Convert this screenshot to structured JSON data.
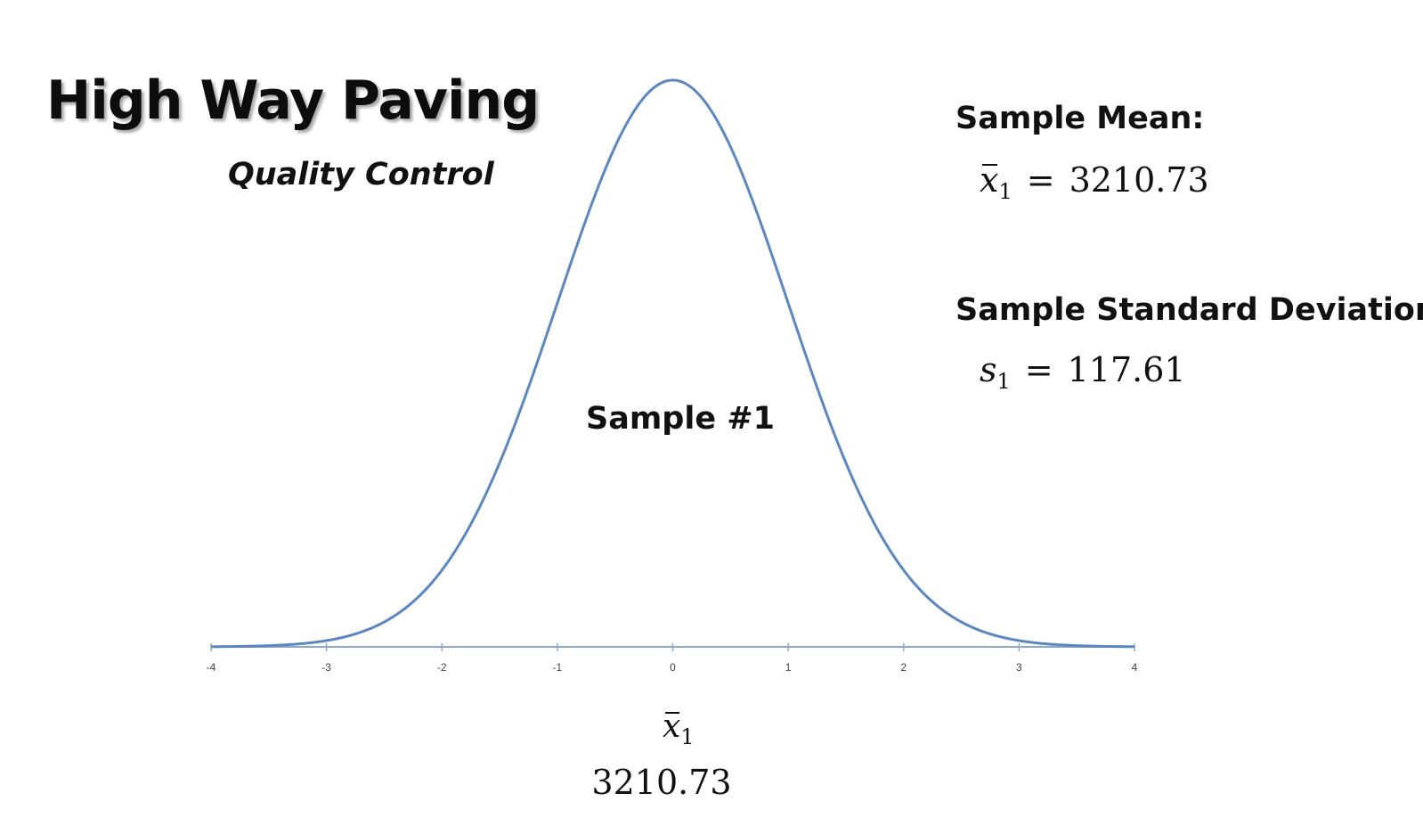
{
  "title": "High Way Paving",
  "subtitle": "Quality Control",
  "mean": {
    "label": "Sample Mean:",
    "symbol": "x",
    "subscript": "1",
    "equals": "=",
    "value": "3210.73"
  },
  "std_dev": {
    "label": "Sample Standard Deviation:",
    "symbol": "s",
    "subscript": "1",
    "equals": "=",
    "value": "117.61"
  },
  "sample_name": "Sample #1",
  "bottom": {
    "symbol": "x",
    "subscript": "1",
    "value": "3210.73"
  },
  "colors": {
    "curve": "#5b87c0",
    "axis": "#8fa8c8",
    "text": "#111111"
  },
  "chart_data": {
    "type": "line",
    "title": "",
    "xlabel": "",
    "ylabel": "",
    "xlim": [
      -4,
      4
    ],
    "ylim": [
      0,
      0.3989
    ],
    "x_ticks": [
      "-4",
      "-3",
      "-2",
      "-1",
      "0",
      "1",
      "2",
      "3",
      "4"
    ],
    "series": [
      {
        "x": [
          -4,
          -3.5,
          -3,
          -2.5,
          -2,
          -1.5,
          -1,
          -0.5,
          0,
          0.5,
          1,
          1.5,
          2,
          2.5,
          3,
          3.5,
          4
        ],
        "y": [
          0.0001,
          0.0009,
          0.0044,
          0.0175,
          0.054,
          0.1295,
          0.242,
          0.3521,
          0.3989,
          0.3521,
          0.242,
          0.1295,
          0.054,
          0.0175,
          0.0044,
          0.0009,
          0.0001
        ]
      }
    ],
    "grid": false,
    "legend": "none"
  }
}
